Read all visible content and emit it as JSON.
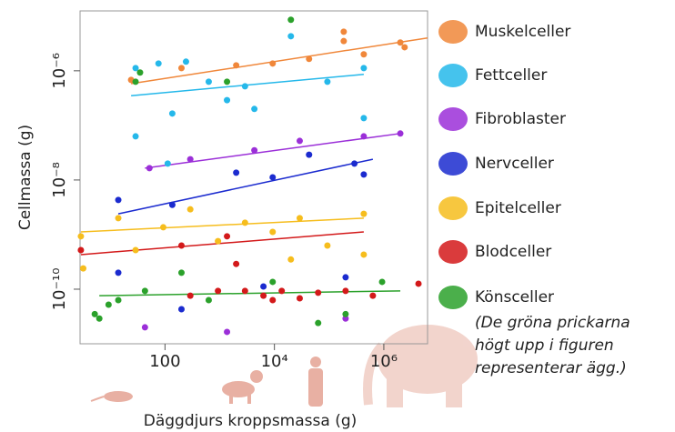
{
  "chart_data": {
    "type": "scatter",
    "x_label": "Däggdjurs kroppsmassa (g)",
    "y_label": "Cellmassa (g)",
    "x_log": true,
    "y_log": true,
    "xlim": [
      2.8,
      6300000
    ],
    "ylim": [
      1e-11,
      1.25e-05
    ],
    "xticks": [
      100,
      {
        "value": 10000,
        "label": "10⁴"
      },
      {
        "value": 1000000,
        "label": "10⁶"
      }
    ],
    "yticks": [
      {
        "value": 1e-10,
        "label": "10⁻¹⁰"
      },
      {
        "value": 1e-08,
        "label": "10⁻⁸"
      },
      {
        "value": 1e-06,
        "label": "10⁻⁶"
      }
    ],
    "note": [
      "(De gröna prickarna",
      "högt upp i figuren",
      "representerar ägg.)"
    ],
    "series": [
      {
        "name": "Muskelceller",
        "color": "#f0873a",
        "x": [
          24,
          200,
          2000,
          9300,
          43000,
          185000,
          185000,
          430000,
          2000000,
          2400000
        ],
        "values": [
          6.8e-07,
          1.12e-06,
          1.26e-06,
          1.36e-06,
          1.65e-06,
          5.2e-06,
          3.5e-06,
          2e-06,
          3.3e-06,
          2.7e-06
        ],
        "fit_x": [
          24,
          6300000
        ],
        "fit_y": [
          5.8e-07,
          4e-06
        ]
      },
      {
        "name": "Fettceller",
        "color": "#25b8ea",
        "x": [
          29,
          76,
          242,
          630,
          29,
          136,
          1360,
          4300,
          20000,
          93000,
          430000,
          430000,
          112,
          2900
        ],
        "values": [
          1.12e-06,
          1.36e-06,
          1.47e-06,
          6.3e-07,
          6.3e-08,
          1.65e-07,
          2.9e-07,
          2e-07,
          4.3e-06,
          6.3e-07,
          1.36e-07,
          1.12e-06,
          2e-08,
          5.2e-07
        ],
        "fit_x": [
          24,
          430000
        ],
        "fit_y": [
          3.5e-07,
          8.6e-07
        ]
      },
      {
        "name": "Fibroblaster",
        "color": "#9b2fd8",
        "x": [
          52,
          290,
          4300,
          29000,
          430000,
          2000000,
          43,
          200000,
          1360
        ],
        "values": [
          1.65e-08,
          2.4e-08,
          3.5e-08,
          5.2e-08,
          6.3e-08,
          7.1e-08,
          2e-11,
          2.9e-11,
          1.65e-11
        ],
        "fit_x": [
          43,
          2000000
        ],
        "fit_y": [
          1.65e-08,
          7.1e-08
        ]
      },
      {
        "name": "Nervceller",
        "color": "#1b2bcf",
        "x": [
          14,
          136,
          2000,
          9300,
          43000,
          290000,
          430000,
          14,
          200000,
          200,
          6300
        ],
        "values": [
          4.3e-09,
          3.5e-09,
          1.36e-08,
          1.12e-08,
          2.9e-08,
          2e-08,
          1.26e-08,
          2e-10,
          1.65e-10,
          4.3e-11,
          1.12e-10
        ],
        "fit_x": [
          14,
          630000
        ],
        "fit_y": [
          2.4e-09,
          2.4e-08
        ]
      },
      {
        "name": "Epitelceller",
        "color": "#f6bd1d",
        "x": [
          2.9,
          3.2,
          14,
          29,
          93,
          290,
          930,
          2900,
          9300,
          29000,
          93000,
          430000,
          430000,
          20000
        ],
        "values": [
          9.3e-10,
          2.4e-10,
          2e-09,
          5.2e-10,
          1.36e-09,
          2.9e-09,
          7.6e-10,
          1.65e-09,
          1.12e-09,
          2e-09,
          6.3e-10,
          2.4e-09,
          4.3e-10,
          3.5e-10
        ],
        "fit_x": [
          2.9,
          430000
        ],
        "fit_y": [
          1.12e-09,
          2e-09
        ]
      },
      {
        "name": "Blodceller",
        "color": "#d3191a",
        "x": [
          2.9,
          200,
          1360,
          2900,
          6300,
          9300,
          13600,
          29000,
          63000,
          200000,
          630000,
          4300000,
          290,
          930,
          2000
        ],
        "values": [
          5.2e-10,
          6.3e-10,
          9.3e-10,
          9.3e-11,
          7.6e-11,
          6.3e-11,
          9.3e-11,
          6.8e-11,
          8.6e-11,
          9.3e-11,
          7.6e-11,
          1.26e-10,
          7.6e-11,
          9.3e-11,
          2.9e-10
        ],
        "fit_x": [
          2.9,
          430000
        ],
        "fit_y": [
          4.3e-10,
          1.12e-09
        ]
      },
      {
        "name": "Könsceller",
        "color": "#2ba12b",
        "x": [
          5.2,
          6.3,
          9.3,
          14,
          43,
          29,
          35,
          200,
          630,
          9300,
          20000,
          63000,
          200000,
          930000,
          1360
        ],
        "values": [
          3.5e-11,
          2.9e-11,
          5.2e-11,
          6.3e-11,
          9.3e-11,
          6.3e-07,
          9.3e-07,
          2e-10,
          6.3e-11,
          1.36e-10,
          8.6e-06,
          2.4e-11,
          3.5e-11,
          1.36e-10,
          6.3e-07
        ],
        "fit_x": [
          6.3,
          2000000
        ],
        "fit_y": [
          7.6e-11,
          9.3e-11
        ]
      }
    ]
  }
}
